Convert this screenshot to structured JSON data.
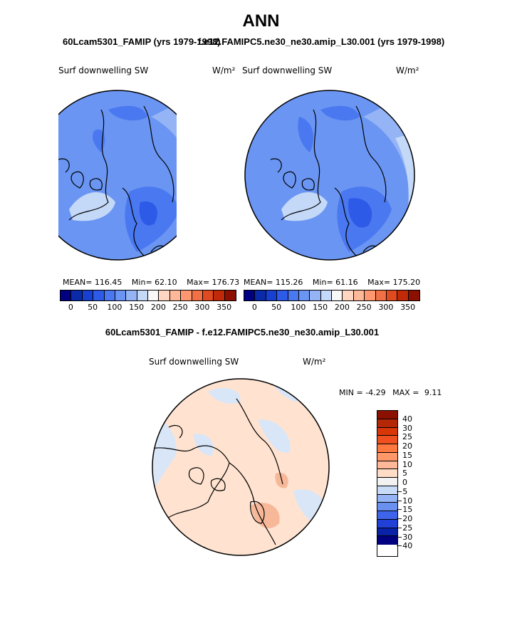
{
  "title": "ANN",
  "subtitle_left": "60Lcam5301_FAMIP (yrs 1979-1998)",
  "subtitle_right": "f.e12.FAMIPC5.ne30_ne30.amip_L30.001 (yrs 1979-1998)",
  "diff_title": "60Lcam5301_FAMIP - f.e12.FAMIPC5.ne30_ne30.amip_L30.001",
  "panels": [
    {
      "variable": "Surf downwelling SW",
      "units": "W/m²",
      "mean_label": "MEAN=",
      "mean": "116.45",
      "min_label": "Min=",
      "min": "62.10",
      "max_label": "Max=",
      "max": "176.73"
    },
    {
      "variable": "Surf downwelling SW",
      "units": "W/m²",
      "mean_label": "MEAN=",
      "mean": "115.26",
      "min_label": "Min=",
      "min": "61.16",
      "max_label": "Max=",
      "max": "175.20"
    }
  ],
  "diff_panel": {
    "variable": "Surf downwelling SW",
    "units": "W/m²",
    "min_label": "MIN =",
    "min": "-4.29",
    "max_label": "MAX =",
    "max": "9.11"
  },
  "horizontal_colorbar": {
    "colors": [
      "#000080",
      "#0a2aa8",
      "#1840d0",
      "#2e5ae8",
      "#4a78f0",
      "#6a95f2",
      "#94b4f5",
      "#c4d8f8",
      "#f8f8f8",
      "#ffd6c2",
      "#ffb898",
      "#ff9870",
      "#f27045",
      "#e04a20",
      "#c02a08",
      "#8c1000"
    ],
    "ticks": [
      "0",
      "50",
      "100",
      "150",
      "200",
      "250",
      "300",
      "350"
    ]
  },
  "vertical_colorbar": {
    "colors": [
      "#8c1000",
      "#b42808",
      "#d83808",
      "#f05020",
      "#ff7840",
      "#ff9868",
      "#ffb898",
      "#ffdcc6",
      "#f2f2f2",
      "#c8dcf8",
      "#94b4f5",
      "#6a90f0",
      "#3e64ea",
      "#2040d8",
      "#0a22a8",
      "#000080"
    ],
    "labels": [
      "40",
      "30",
      "25",
      "20",
      "15",
      "10",
      "5",
      "0",
      "-5",
      "-10",
      "-15",
      "-20",
      "-25",
      "-30",
      "-40"
    ]
  }
}
